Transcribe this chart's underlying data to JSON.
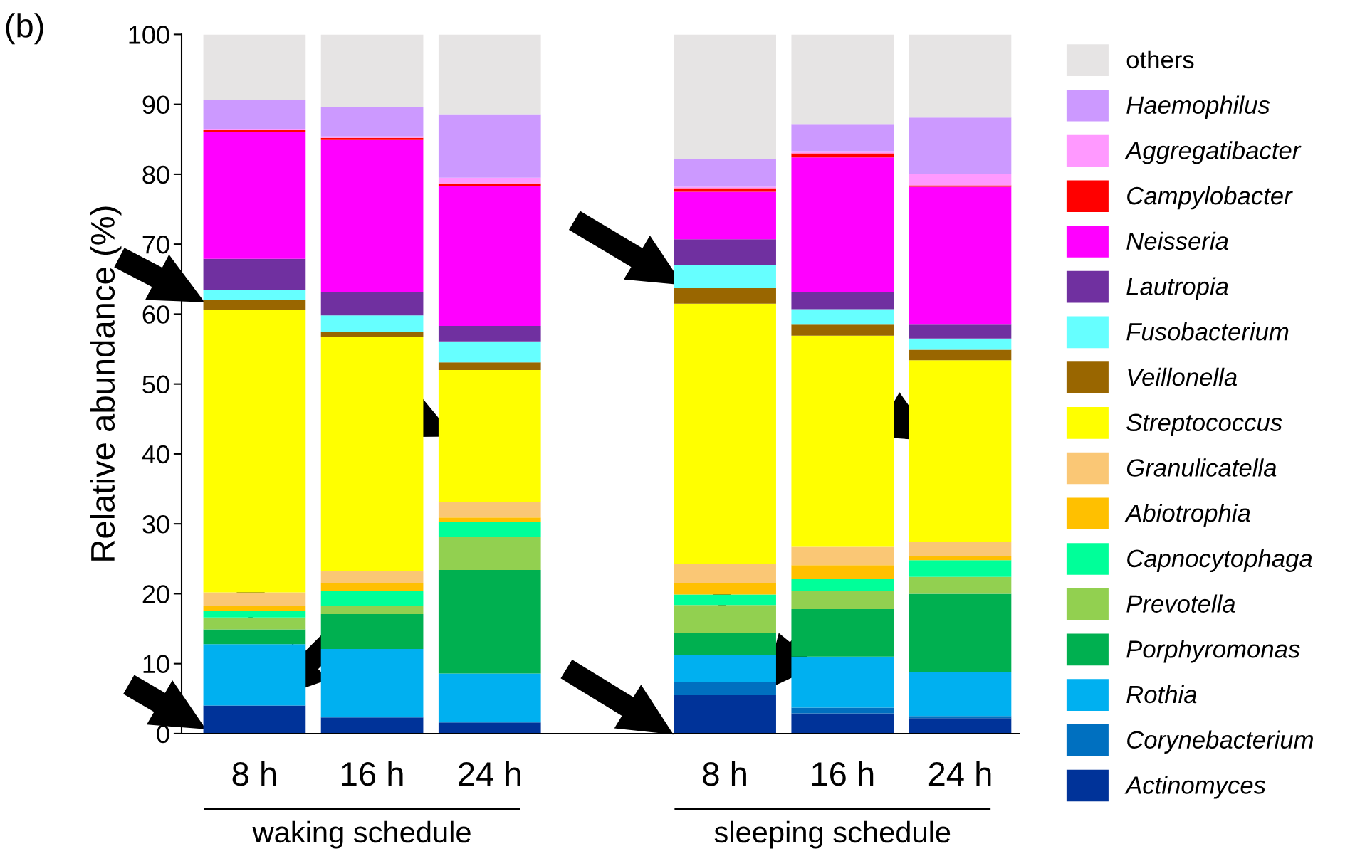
{
  "chart_data": {
    "type": "bar",
    "stacked": true,
    "categories": [
      "8 h",
      "16 h",
      "24 h",
      null,
      "8 h",
      "16 h",
      "24 h"
    ],
    "ylabel": "Relative abundance (%)",
    "ylim": [
      0,
      100
    ],
    "yticks": [
      0,
      10,
      20,
      30,
      40,
      50,
      60,
      70,
      80,
      90,
      100
    ],
    "grid": false,
    "legend": "right",
    "annotations": [
      "(b)",
      "waking schedule",
      "sleeping schedule"
    ],
    "series": [
      {
        "name": "Actinomyces",
        "color": "#003399",
        "values": [
          4.0,
          2.3,
          1.6,
          null,
          5.5,
          2.9,
          2.2
        ]
      },
      {
        "name": "Corynebacterium",
        "color": "#0070c0",
        "values": [
          0,
          0,
          0,
          null,
          1.9,
          0.8,
          0.3
        ]
      },
      {
        "name": "Rothia",
        "color": "#00b0f0",
        "values": [
          8.8,
          9.8,
          7.0,
          null,
          3.8,
          7.3,
          6.3
        ]
      },
      {
        "name": "Porphyromonas",
        "color": "#00b050",
        "values": [
          2.1,
          5.0,
          14.8,
          null,
          3.2,
          6.8,
          11.2
        ]
      },
      {
        "name": "Prevotella",
        "color": "#92d050",
        "values": [
          1.7,
          1.2,
          4.7,
          null,
          4.0,
          2.6,
          2.4
        ]
      },
      {
        "name": "Capnocytophaga",
        "color": "#00ff99",
        "values": [
          0.9,
          2.1,
          2.2,
          null,
          1.5,
          1.7,
          2.4
        ]
      },
      {
        "name": "Abiotrophia",
        "color": "#ffc000",
        "values": [
          0.8,
          1.1,
          0.6,
          null,
          1.6,
          2.0,
          0.6
        ]
      },
      {
        "name": "Granulicatella",
        "color": "#fac775",
        "values": [
          1.9,
          1.7,
          2.2,
          null,
          2.8,
          2.6,
          2.0
        ]
      },
      {
        "name": "Streptococcus",
        "color": "#ffff00",
        "values": [
          40.4,
          33.5,
          18.9,
          null,
          37.2,
          30.2,
          26.0
        ]
      },
      {
        "name": "Veillonella",
        "color": "#996600",
        "values": [
          1.4,
          0.8,
          1.1,
          null,
          2.2,
          1.6,
          1.5
        ]
      },
      {
        "name": "Fusobacterium",
        "color": "#66ffff",
        "values": [
          1.4,
          2.3,
          3.0,
          null,
          3.3,
          2.2,
          1.6
        ]
      },
      {
        "name": "Lautropia",
        "color": "#7030a0",
        "values": [
          4.5,
          3.3,
          2.2,
          null,
          3.7,
          2.4,
          2.0
        ]
      },
      {
        "name": "Neisseria",
        "color": "#ff00ff",
        "values": [
          18.1,
          21.8,
          20.0,
          null,
          6.8,
          19.3,
          19.7
        ]
      },
      {
        "name": "Campylobacter",
        "color": "#ff0000",
        "values": [
          0.3,
          0.3,
          0.4,
          null,
          0.5,
          0.6,
          0.2
        ]
      },
      {
        "name": "Aggregatibacter",
        "color": "#ff99ff",
        "values": [
          0.2,
          0.2,
          0.8,
          null,
          0.2,
          0.3,
          1.6
        ]
      },
      {
        "name": "Haemophilus",
        "color": "#cc99ff",
        "values": [
          4.1,
          4.2,
          9.1,
          null,
          4.0,
          3.9,
          8.1
        ]
      },
      {
        "name": "others",
        "color": "#e6e4e4",
        "values": [
          9.4,
          10.4,
          11.4,
          null,
          17.8,
          12.8,
          11.9
        ]
      }
    ]
  }
}
